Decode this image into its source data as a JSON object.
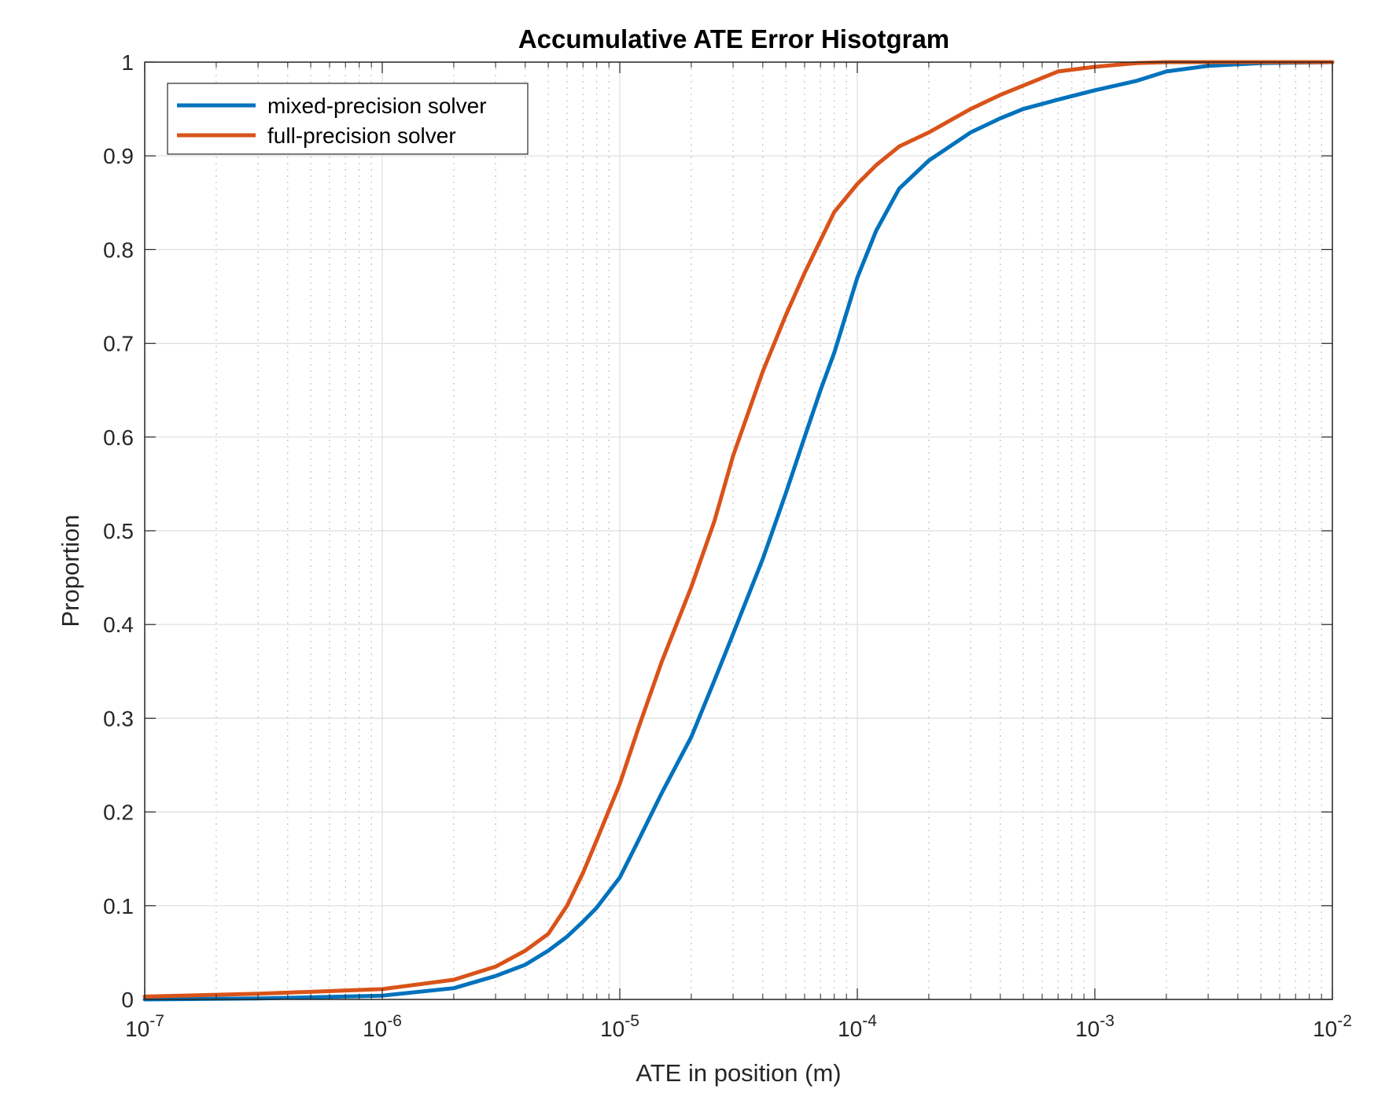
{
  "chart_data": {
    "type": "line",
    "title": "Accumulative ATE Error Hisotgram",
    "xlabel": "ATE in position (m)",
    "ylabel": "Proportion",
    "xscale": "log",
    "xlim": [
      1e-07,
      0.01
    ],
    "ylim": [
      0,
      1
    ],
    "grid": true,
    "legend_position": "top-left",
    "x_ticks": [
      {
        "base": "10",
        "exp": "-7",
        "value": 1e-07
      },
      {
        "base": "10",
        "exp": "-6",
        "value": 1e-06
      },
      {
        "base": "10",
        "exp": "-5",
        "value": 1e-05
      },
      {
        "base": "10",
        "exp": "-4",
        "value": 0.0001
      },
      {
        "base": "10",
        "exp": "-3",
        "value": 0.001
      },
      {
        "base": "10",
        "exp": "-2",
        "value": 0.01
      }
    ],
    "y_ticks": [
      {
        "label": "0",
        "value": 0
      },
      {
        "label": "0.1",
        "value": 0.1
      },
      {
        "label": "0.2",
        "value": 0.2
      },
      {
        "label": "0.3",
        "value": 0.3
      },
      {
        "label": "0.4",
        "value": 0.4
      },
      {
        "label": "0.5",
        "value": 0.5
      },
      {
        "label": "0.6",
        "value": 0.6
      },
      {
        "label": "0.7",
        "value": 0.7
      },
      {
        "label": "0.8",
        "value": 0.8
      },
      {
        "label": "0.9",
        "value": 0.9
      },
      {
        "label": "1",
        "value": 1
      }
    ],
    "series": [
      {
        "name": "mixed-precision solver",
        "color": "#0072BD",
        "x": [
          1e-07,
          3e-07,
          1e-06,
          2e-06,
          3e-06,
          4e-06,
          5e-06,
          6e-06,
          7e-06,
          8e-06,
          1e-05,
          1.2e-05,
          1.5e-05,
          2e-05,
          2.5e-05,
          3e-05,
          4e-05,
          5e-05,
          6e-05,
          7e-05,
          8e-05,
          0.0001,
          0.00012,
          0.00015,
          0.0002,
          0.0003,
          0.0004,
          0.0005,
          0.0007,
          0.001,
          0.0015,
          0.002,
          0.003,
          0.005,
          0.01
        ],
        "y": [
          0.0,
          0.001,
          0.004,
          0.012,
          0.025,
          0.037,
          0.052,
          0.067,
          0.083,
          0.098,
          0.13,
          0.17,
          0.22,
          0.28,
          0.34,
          0.39,
          0.47,
          0.54,
          0.6,
          0.65,
          0.69,
          0.77,
          0.82,
          0.865,
          0.895,
          0.925,
          0.94,
          0.95,
          0.96,
          0.97,
          0.98,
          0.99,
          0.996,
          0.999,
          1.0
        ]
      },
      {
        "name": "full-precision solver",
        "color": "#D95319",
        "x": [
          1e-07,
          3e-07,
          1e-06,
          2e-06,
          3e-06,
          4e-06,
          5e-06,
          6e-06,
          7e-06,
          8e-06,
          1e-05,
          1.2e-05,
          1.5e-05,
          2e-05,
          2.5e-05,
          3e-05,
          4e-05,
          5e-05,
          6e-05,
          7e-05,
          8e-05,
          0.0001,
          0.00012,
          0.00015,
          0.0002,
          0.0003,
          0.0004,
          0.0005,
          0.0007,
          0.001,
          0.0015,
          0.002,
          0.003,
          0.005,
          0.01
        ],
        "y": [
          0.003,
          0.006,
          0.011,
          0.021,
          0.035,
          0.052,
          0.07,
          0.1,
          0.135,
          0.17,
          0.23,
          0.29,
          0.36,
          0.44,
          0.51,
          0.58,
          0.67,
          0.73,
          0.775,
          0.81,
          0.84,
          0.87,
          0.89,
          0.91,
          0.925,
          0.95,
          0.965,
          0.975,
          0.99,
          0.995,
          0.999,
          1.0,
          1.0,
          1.0,
          1.0
        ]
      }
    ]
  }
}
